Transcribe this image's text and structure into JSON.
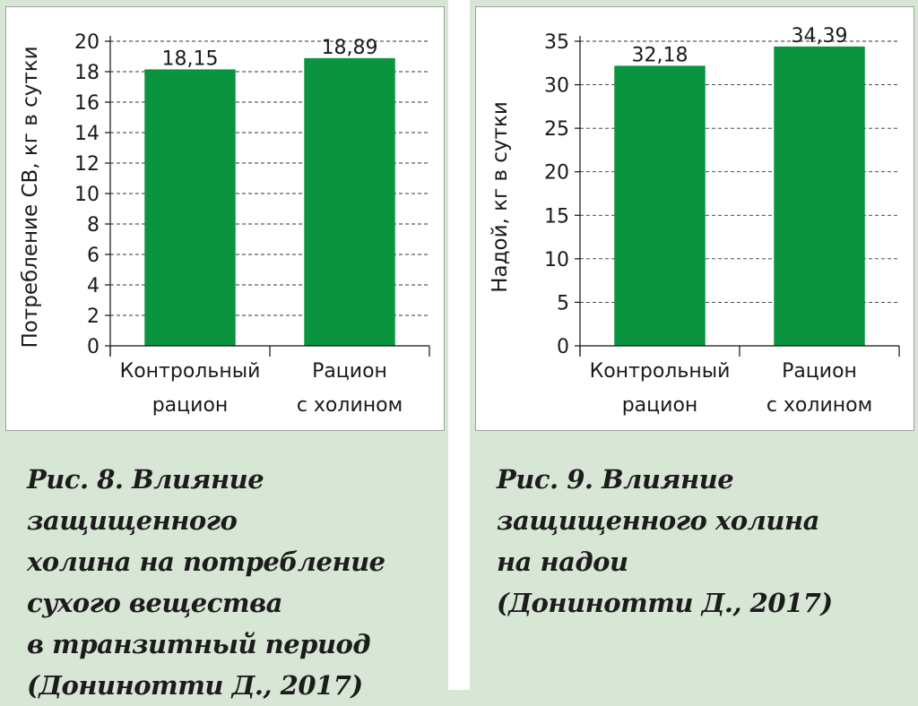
{
  "colors": {
    "bar": "#0a9440",
    "grid": "#333333",
    "panel_bg": "#d8e6d6"
  },
  "chart_data": [
    {
      "type": "bar",
      "categories": [
        [
          "Контрольный",
          "рацион"
        ],
        [
          "Рацион",
          "с холином"
        ]
      ],
      "values": [
        18.15,
        18.89
      ],
      "value_labels": [
        "18,15",
        "18,89"
      ],
      "ylabel": "Потребление СВ, кг в сутки",
      "ylim": [
        0,
        20
      ],
      "yticks": [
        0,
        2,
        4,
        6,
        8,
        10,
        12,
        14,
        16,
        18,
        20
      ],
      "grid": true,
      "caption": "Рис. 8. Влияние защищенного\nхолина на потребление\nсухого вещества\nв транзитный период\n(Донинотти Д., 2017)"
    },
    {
      "type": "bar",
      "categories": [
        [
          "Контрольный",
          "рацион"
        ],
        [
          "Рацион",
          "с холином"
        ]
      ],
      "values": [
        32.18,
        34.39
      ],
      "value_labels": [
        "32,18",
        "34,39"
      ],
      "ylabel": "Надой, кг в сутки",
      "ylim": [
        0,
        35
      ],
      "yticks": [
        0,
        5,
        10,
        15,
        20,
        25,
        30,
        35
      ],
      "grid": true,
      "caption": "Рис. 9. Влияние\nзащищенного холина\nна надои\n(Донинотти Д., 2017)"
    }
  ]
}
